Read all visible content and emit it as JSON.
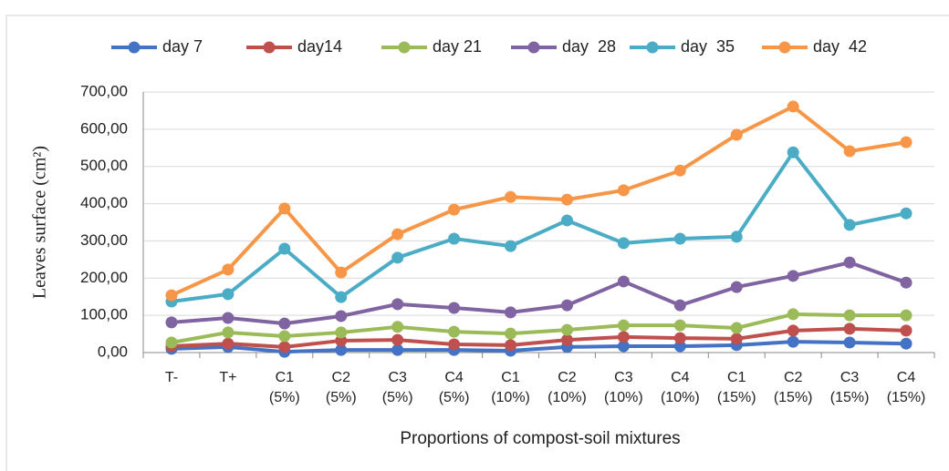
{
  "chart_data": {
    "type": "line",
    "y_label": "Leaves surface (cm²)",
    "x_label": "Proportions of compost-soil mixtures",
    "categories": [
      "T-",
      "T+",
      "C1 (5%)",
      "C2 (5%)",
      "C3 (5%)",
      "C4 (5%)",
      "C1 (10%)",
      "C2 (10%)",
      "C3 (10%)",
      "C4 (10%)",
      "C1 (15%)",
      "C2 (15%)",
      "C3 (15%)",
      "C4 (15%)"
    ],
    "series": [
      {
        "name": "day 7",
        "color": "#4472c4",
        "values": [
          10,
          15,
          2,
          7,
          7,
          7,
          5,
          15,
          17,
          17,
          20,
          29,
          27,
          24
        ]
      },
      {
        "name": "day14",
        "color": "#c0504d",
        "values": [
          17,
          24,
          15,
          32,
          34,
          22,
          20,
          34,
          42,
          39,
          37,
          59,
          64,
          59
        ]
      },
      {
        "name": "day 21",
        "color": "#9bbb59",
        "values": [
          27,
          54,
          44,
          54,
          69,
          56,
          51,
          61,
          73,
          73,
          66,
          103,
          100,
          100
        ]
      },
      {
        "name": "day  28",
        "color": "#8064a2",
        "values": [
          81,
          93,
          78,
          98,
          130,
          120,
          108,
          127,
          191,
          127,
          176,
          206,
          242,
          188
        ]
      },
      {
        "name": "day  35",
        "color": "#4bacc6",
        "values": [
          137,
          157,
          279,
          149,
          255,
          306,
          286,
          355,
          294,
          306,
          311,
          538,
          343,
          374
        ]
      },
      {
        "name": "day  42",
        "color": "#f79646",
        "values": [
          154,
          223,
          387,
          215,
          318,
          384,
          418,
          411,
          436,
          489,
          585,
          661,
          541,
          565
        ]
      }
    ],
    "ylim": [
      0,
      700
    ],
    "yticks": [
      {
        "value": 0,
        "label": "0,00"
      },
      {
        "value": 100,
        "label": "100,00"
      },
      {
        "value": 200,
        "label": "200,00"
      },
      {
        "value": 300,
        "label": "300,00"
      },
      {
        "value": 400,
        "label": "400,00"
      },
      {
        "value": 500,
        "label": "500,00"
      },
      {
        "value": 600,
        "label": "600,00"
      },
      {
        "value": 700,
        "label": "700,00"
      }
    ],
    "grid": true,
    "legend": "top"
  }
}
